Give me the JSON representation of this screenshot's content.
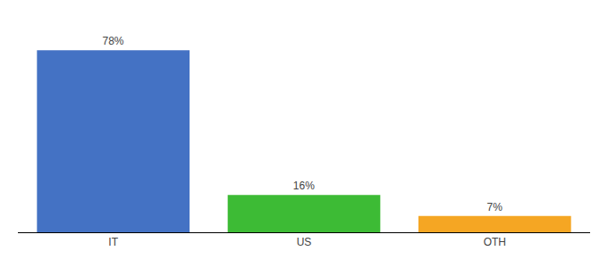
{
  "chart_data": {
    "type": "bar",
    "categories": [
      "IT",
      "US",
      "OTH"
    ],
    "values": [
      78,
      16,
      7
    ],
    "value_labels": [
      "78%",
      "16%",
      "7%"
    ],
    "colors": [
      "#4472c4",
      "#3dbb35",
      "#f5a623"
    ],
    "ylim": [
      0,
      88
    ],
    "grid": false,
    "data_labels": true,
    "tick_labels": "x"
  }
}
